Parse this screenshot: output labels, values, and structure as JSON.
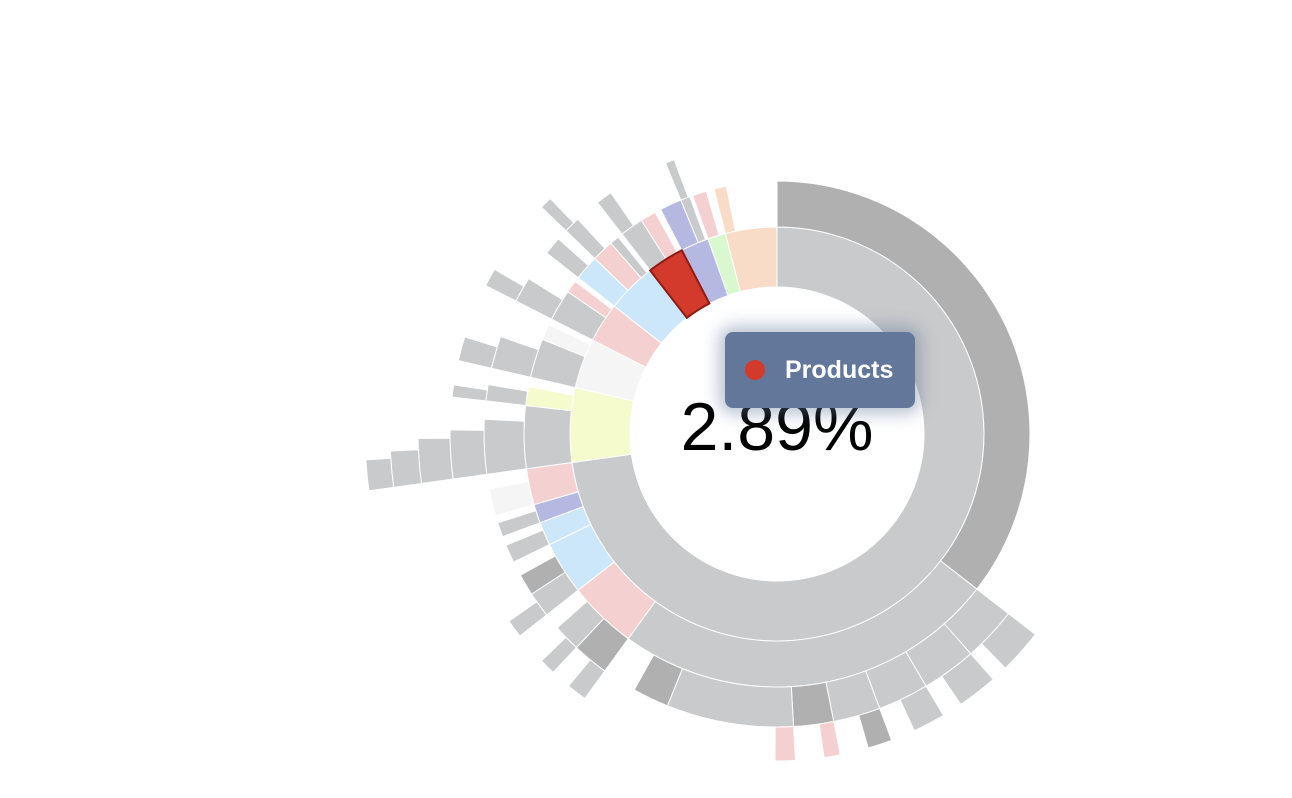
{
  "chart_data": {
    "type": "sunburst",
    "children": [
      {
        "value": 72.8,
        "color": "#c9cacc",
        "children": [
          {
            "value": 35.5,
            "color": "#b0b0b0"
          },
          {
            "value": 24.5,
            "color": "#c9cacc",
            "children": [
              {
                "value": 3.0,
                "color": "#c9cacc",
                "children": [
                  {
                    "value": 2.2,
                    "color": "#c9cacc"
                  }
                ]
              },
              {
                "value": 3.0,
                "color": "#c9cacc",
                "children": [
                  {
                    "value": 2.0,
                    "color": "#c9cacc"
                  }
                ]
              },
              {
                "value": 2.8,
                "color": "#c9cacc",
                "children": [
                  {
                    "value": 1.6,
                    "color": "#c9cacc"
                  }
                ]
              },
              {
                "value": 2.6,
                "color": "#c9cacc",
                "children": [
                  {
                    "value": 1.2,
                    "color": "#b0b0b0"
                  }
                ]
              },
              {
                "value": 2.2,
                "color": "#b0b0b0",
                "children": [
                  {
                    "value": 0.8,
                    "color": "#f5d0d0"
                  }
                ]
              },
              {
                "value": 7.0,
                "color": "#c9cacc",
                "children": [
                  {
                    "value": 1.0,
                    "color": "#f5d0d0"
                  }
                ]
              },
              {
                "value": 2.0,
                "color": "#b0b0b0"
              }
            ]
          },
          {
            "value": 4.4,
            "color": "#f5d0d0",
            "children": [
              {
                "value": 2.0,
                "color": "#b0b0b0",
                "children": [
                  {
                    "value": 1.0,
                    "color": "#c9cacc"
                  }
                ]
              },
              {
                "value": 1.5,
                "color": "#c9cacc",
                "children": [
                  {
                    "value": 0.8,
                    "color": "#c9cacc"
                  }
                ]
              }
            ]
          },
          {
            "value": 3.4,
            "color": "#cde7fa",
            "children": [
              {
                "value": 1.4,
                "color": "#c9cacc",
                "children": [
                  {
                    "value": 0.9,
                    "color": "#c9cacc"
                  }
                ]
              },
              {
                "value": 1.2,
                "color": "#b0b0b0"
              }
            ]
          },
          {
            "value": 1.5,
            "color": "#cde7fa",
            "children": [
              {
                "value": 1.0,
                "color": "#c9cacc"
              }
            ]
          },
          {
            "value": 1.2,
            "color": "#b5b8e0",
            "children": [
              {
                "value": 0.8,
                "color": "#c9cacc"
              }
            ]
          },
          {
            "value": 2.3,
            "color": "#f5d0d0",
            "children": [
              {
                "value": 1.5,
                "color": "#f5f5f5"
              }
            ]
          }
        ]
      },
      {
        "value": 5.8,
        "color": "#f6fbcd",
        "children": [
          {
            "value": 4.0,
            "color": "#c9cacc",
            "children": [
              {
                "value": 3.0,
                "color": "#c9cacc",
                "children": [
                  {
                    "value": 2.4,
                    "color": "#c9cacc",
                    "children": [
                      {
                        "value": 2.0,
                        "color": "#c9cacc",
                        "children": [
                          {
                            "value": 1.5,
                            "color": "#c9cacc",
                            "children": [
                              {
                                "value": 1.2,
                                "color": "#c9cacc"
                              }
                            ]
                          }
                        ]
                      }
                    ]
                  }
                ]
              }
            ]
          },
          {
            "value": 1.2,
            "color": "#f6fbcd",
            "children": [
              {
                "value": 0.9,
                "color": "#c9cacc",
                "children": [
                  {
                    "value": 0.6,
                    "color": "#c9cacc"
                  }
                ]
              }
            ]
          }
        ]
      },
      {
        "value": 3.9,
        "color": "#f5f5f5",
        "children": [
          {
            "value": 2.5,
            "color": "#c9cacc",
            "children": [
              {
                "value": 1.8,
                "color": "#c9cacc",
                "children": [
                  {
                    "value": 1.2,
                    "color": "#c9cacc"
                  }
                ]
              }
            ]
          },
          {
            "value": 1.0,
            "color": "#f5f5f5"
          }
        ]
      },
      {
        "value": 3.1,
        "color": "#f5d0d0",
        "children": [
          {
            "value": 2.0,
            "color": "#c9cacc",
            "children": [
              {
                "value": 1.4,
                "color": "#c9cacc",
                "children": [
                  {
                    "value": 0.9,
                    "color": "#c9cacc"
                  }
                ]
              }
            ]
          },
          {
            "value": 0.8,
            "color": "#f5d0d0"
          }
        ]
      },
      {
        "value": 3.9,
        "color": "#cde7fa",
        "children": [
          {
            "value": 1.6,
            "color": "#cde7fa",
            "children": [
              {
                "value": 1.0,
                "color": "#c9cacc"
              }
            ]
          },
          {
            "value": 1.4,
            "color": "#f5d0d0",
            "children": [
              {
                "value": 0.9,
                "color": "#c9cacc",
                "children": [
                  {
                    "value": 0.6,
                    "color": "#c9cacc"
                  }
                ]
              }
            ]
          },
          {
            "value": 0.6,
            "color": "#c9cacc"
          }
        ]
      },
      {
        "name": "Products",
        "value": 2.89,
        "value_label": "2.89%",
        "color": "#d33a2c",
        "children": [
          {
            "value": 1.5,
            "color": "#c9cacc",
            "children": [
              {
                "value": 0.9,
                "color": "#c9cacc"
              }
            ]
          },
          {
            "value": 1.0,
            "color": "#f5d0d0"
          }
        ]
      },
      {
        "value": 2.2,
        "color": "#b5b8e0",
        "children": [
          {
            "value": 1.4,
            "color": "#b5b8e0"
          },
          {
            "value": 0.6,
            "color": "#c9cacc",
            "children": [
              {
                "value": 0.5,
                "color": "#c9cacc"
              }
            ]
          }
        ]
      },
      {
        "value": 1.4,
        "color": "#d9f8cf",
        "children": [
          {
            "value": 0.9,
            "color": "#f5d0d0"
          }
        ]
      },
      {
        "value": 4.01,
        "color": "#f8dcc8",
        "children": [
          {
            "value": 0.8,
            "color": "#f8dcc8"
          }
        ]
      }
    ]
  }
}
